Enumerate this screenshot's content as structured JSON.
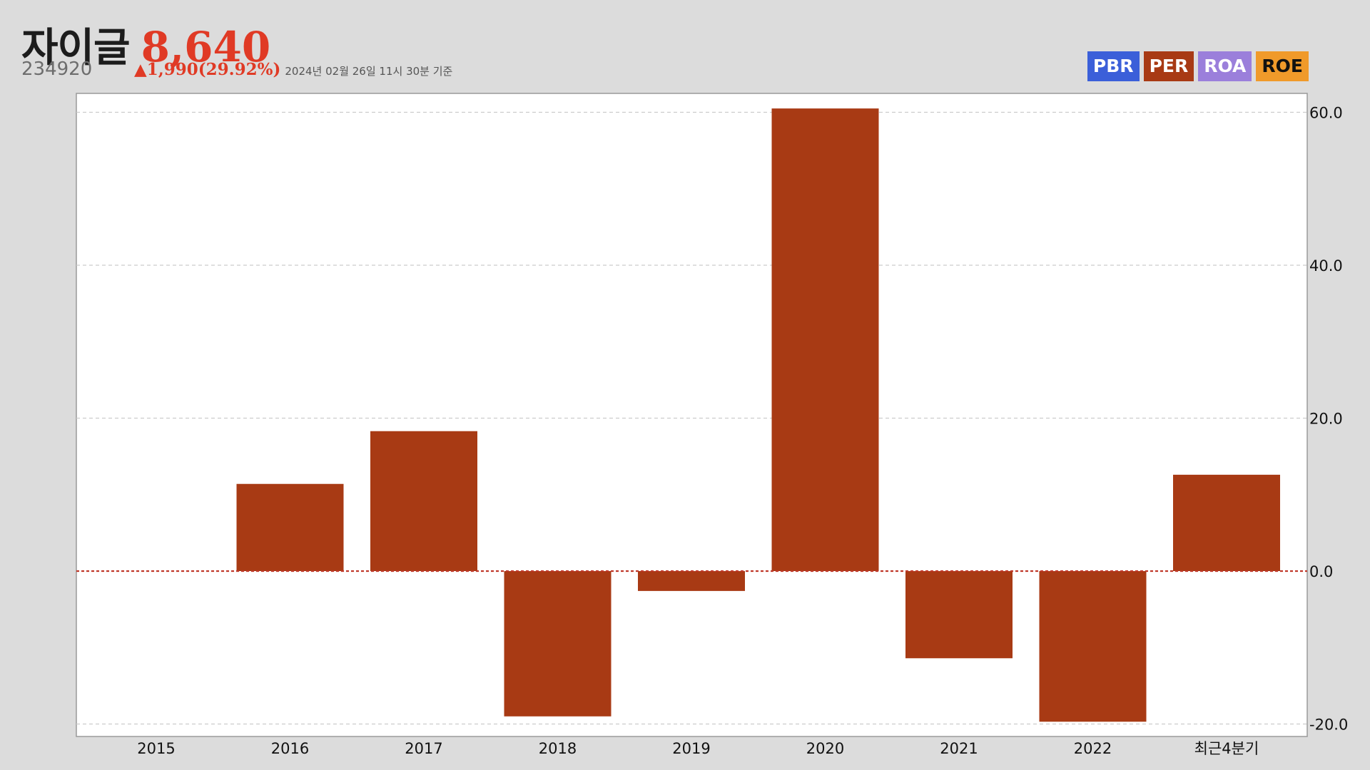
{
  "stock": {
    "name": "자이글",
    "price": "8,640",
    "code": "234920",
    "change": "▲1,990(29.92%)",
    "date": "2024년 02월 26일 11시 30분 기준"
  },
  "colors": {
    "price": "#e03a25",
    "bar": "#a83a14",
    "zero_line": "#c0392b",
    "grid": "#cccccc"
  },
  "legend": [
    {
      "label": "PBR",
      "color": "#3b5fd9"
    },
    {
      "label": "PER",
      "color": "#a83a14"
    },
    {
      "label": "ROA",
      "color": "#9b7fdb"
    },
    {
      "label": "ROE",
      "color": "#f09a2a"
    }
  ],
  "chart_data": {
    "type": "bar",
    "categories": [
      "2015",
      "2016",
      "2017",
      "2018",
      "2019",
      "2020",
      "2021",
      "2022",
      "최근4분기"
    ],
    "series": [
      {
        "values": [
          null,
          11.4,
          18.3,
          -19.0,
          -2.6,
          60.5,
          -11.4,
          -19.7,
          12.6
        ]
      }
    ],
    "ylim": [
      -21,
      62
    ],
    "yticks": [
      "60.0",
      "40.0",
      "20.0",
      "0.0",
      "-20.0"
    ],
    "ytick_values": [
      60,
      40,
      20,
      0,
      -20
    ],
    "y_axis_position": "right",
    "grid": true
  }
}
